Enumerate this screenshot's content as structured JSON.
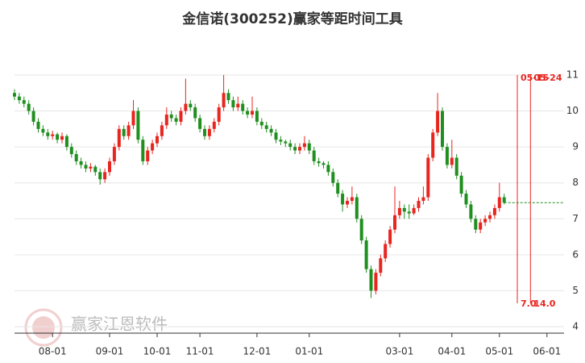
{
  "chart_data": {
    "type": "candlestick",
    "title": "金信诺(300252)赢家等距时间工具",
    "watermark": "赢家江恩软件",
    "up_color": "#e8251f",
    "down_color": "#1f8f1f",
    "marker_color": "#e8251f",
    "ylim": [
      3.82,
      11.74
    ],
    "yticks": [
      4,
      5,
      6,
      7,
      8,
      9,
      10,
      11
    ],
    "grid": true,
    "categories": [
      null,
      null,
      null,
      null,
      null,
      null,
      null,
      null,
      "08-01",
      null,
      null,
      null,
      null,
      null,
      null,
      null,
      null,
      null,
      null,
      null,
      "09-01",
      null,
      null,
      null,
      null,
      null,
      null,
      null,
      null,
      null,
      "10-01",
      null,
      null,
      null,
      null,
      null,
      null,
      null,
      null,
      "11-01",
      null,
      null,
      null,
      null,
      null,
      null,
      null,
      null,
      null,
      null,
      null,
      "12-01",
      null,
      null,
      null,
      null,
      null,
      null,
      null,
      null,
      null,
      null,
      "01-01",
      null,
      null,
      null,
      null,
      null,
      null,
      null,
      null,
      null,
      null,
      null,
      null,
      null,
      null,
      null,
      null,
      null,
      null,
      "03-01",
      null,
      null,
      null,
      null,
      null,
      null,
      null,
      null,
      null,
      null,
      "04-01",
      null,
      null,
      null,
      null,
      null,
      null,
      null,
      null,
      null,
      "05-01",
      null,
      null,
      null,
      null,
      null,
      null,
      null,
      null,
      null,
      "06-01",
      null,
      null
    ],
    "candles": [
      [
        10.5,
        10.6,
        10.3,
        10.4
      ],
      [
        10.4,
        10.5,
        10.2,
        10.3
      ],
      [
        10.3,
        10.4,
        10.1,
        10.2
      ],
      [
        10.2,
        10.3,
        9.9,
        10.0
      ],
      [
        10.0,
        10.1,
        9.6,
        9.7
      ],
      [
        9.7,
        9.8,
        9.4,
        9.5
      ],
      [
        9.5,
        9.6,
        9.3,
        9.4
      ],
      [
        9.4,
        9.5,
        9.2,
        9.3
      ],
      [
        9.3,
        9.45,
        9.2,
        9.35
      ],
      [
        9.35,
        9.4,
        9.1,
        9.2
      ],
      [
        9.2,
        9.4,
        9.1,
        9.3
      ],
      [
        9.3,
        9.35,
        8.9,
        9.0
      ],
      [
        9.0,
        9.1,
        8.7,
        8.8
      ],
      [
        8.8,
        8.9,
        8.5,
        8.6
      ],
      [
        8.6,
        8.7,
        8.4,
        8.5
      ],
      [
        8.5,
        8.6,
        8.3,
        8.4
      ],
      [
        8.4,
        8.55,
        8.3,
        8.45
      ],
      [
        8.45,
        8.5,
        8.2,
        8.3
      ],
      [
        8.3,
        8.4,
        7.95,
        8.1
      ],
      [
        8.1,
        8.4,
        8.0,
        8.3
      ],
      [
        8.3,
        8.7,
        8.2,
        8.6
      ],
      [
        8.6,
        9.1,
        8.5,
        9.0
      ],
      [
        9.0,
        9.6,
        8.9,
        9.5
      ],
      [
        9.5,
        9.6,
        9.2,
        9.3
      ],
      [
        9.3,
        9.7,
        9.2,
        9.6
      ],
      [
        9.6,
        10.3,
        9.5,
        10.0
      ],
      [
        10.0,
        10.1,
        9.1,
        9.2
      ],
      [
        9.2,
        9.3,
        8.5,
        8.6
      ],
      [
        8.6,
        9.0,
        8.5,
        8.9
      ],
      [
        8.9,
        9.2,
        8.8,
        9.1
      ],
      [
        9.1,
        9.4,
        9.0,
        9.3
      ],
      [
        9.3,
        9.7,
        9.2,
        9.6
      ],
      [
        9.6,
        10.1,
        9.5,
        9.9
      ],
      [
        9.9,
        10.0,
        9.7,
        9.8
      ],
      [
        9.8,
        9.9,
        9.6,
        9.7
      ],
      [
        9.7,
        10.1,
        9.6,
        10.0
      ],
      [
        10.0,
        10.9,
        9.9,
        10.2
      ],
      [
        10.2,
        10.3,
        10.0,
        10.1
      ],
      [
        10.1,
        10.2,
        9.7,
        9.8
      ],
      [
        9.8,
        9.9,
        9.4,
        9.5
      ],
      [
        9.5,
        9.6,
        9.2,
        9.3
      ],
      [
        9.3,
        9.6,
        9.2,
        9.5
      ],
      [
        9.5,
        9.8,
        9.4,
        9.7
      ],
      [
        9.7,
        10.2,
        9.6,
        10.1
      ],
      [
        10.1,
        11.0,
        10.0,
        10.5
      ],
      [
        10.5,
        10.6,
        10.2,
        10.3
      ],
      [
        10.3,
        10.4,
        10.0,
        10.1
      ],
      [
        10.1,
        10.4,
        10.0,
        10.2
      ],
      [
        10.2,
        10.3,
        9.9,
        10.0
      ],
      [
        10.0,
        10.1,
        9.8,
        9.9
      ],
      [
        9.9,
        10.4,
        9.8,
        10.0
      ],
      [
        10.0,
        10.1,
        9.6,
        9.7
      ],
      [
        9.7,
        9.8,
        9.5,
        9.6
      ],
      [
        9.6,
        9.7,
        9.4,
        9.5
      ],
      [
        9.5,
        9.6,
        9.3,
        9.4
      ],
      [
        9.4,
        9.5,
        9.1,
        9.2
      ],
      [
        9.2,
        9.3,
        9.05,
        9.15
      ],
      [
        9.15,
        9.2,
        9.0,
        9.1
      ],
      [
        9.1,
        9.2,
        8.9,
        9.0
      ],
      [
        9.0,
        9.1,
        8.8,
        8.9
      ],
      [
        8.9,
        9.1,
        8.8,
        9.0
      ],
      [
        9.0,
        9.3,
        8.9,
        9.1
      ],
      [
        9.1,
        9.2,
        8.8,
        8.9
      ],
      [
        8.9,
        9.0,
        8.5,
        8.6
      ],
      [
        8.6,
        8.7,
        8.45,
        8.55
      ],
      [
        8.55,
        8.6,
        8.4,
        8.5
      ],
      [
        8.5,
        8.6,
        8.2,
        8.3
      ],
      [
        8.3,
        8.4,
        7.9,
        8.0
      ],
      [
        8.0,
        8.1,
        7.6,
        7.7
      ],
      [
        7.7,
        7.8,
        7.2,
        7.4
      ],
      [
        7.4,
        7.6,
        7.3,
        7.5
      ],
      [
        7.5,
        7.9,
        7.4,
        7.6
      ],
      [
        7.6,
        7.7,
        6.9,
        7.0
      ],
      [
        7.0,
        7.1,
        6.3,
        6.4
      ],
      [
        6.4,
        6.5,
        5.5,
        5.6
      ],
      [
        5.6,
        5.7,
        4.8,
        5.0
      ],
      [
        5.0,
        5.6,
        4.9,
        5.5
      ],
      [
        5.5,
        6.0,
        5.4,
        5.9
      ],
      [
        5.9,
        6.4,
        5.8,
        6.3
      ],
      [
        6.3,
        6.8,
        6.2,
        6.7
      ],
      [
        6.7,
        7.9,
        6.6,
        7.1
      ],
      [
        7.1,
        7.5,
        7.0,
        7.3
      ],
      [
        7.3,
        7.4,
        7.0,
        7.2
      ],
      [
        7.2,
        7.4,
        7.0,
        7.15
      ],
      [
        7.15,
        7.4,
        7.1,
        7.3
      ],
      [
        7.3,
        7.6,
        7.2,
        7.5
      ],
      [
        7.5,
        7.9,
        7.4,
        7.6
      ],
      [
        7.6,
        8.8,
        7.5,
        8.7
      ],
      [
        8.7,
        9.5,
        8.6,
        9.4
      ],
      [
        9.4,
        10.5,
        9.3,
        10.0
      ],
      [
        10.0,
        10.1,
        8.9,
        9.0
      ],
      [
        9.0,
        9.1,
        8.4,
        8.5
      ],
      [
        8.5,
        9.2,
        8.4,
        8.7
      ],
      [
        8.7,
        8.8,
        8.1,
        8.2
      ],
      [
        8.2,
        8.3,
        7.6,
        7.7
      ],
      [
        7.7,
        7.8,
        7.3,
        7.4
      ],
      [
        7.4,
        7.5,
        6.9,
        7.0
      ],
      [
        7.0,
        7.1,
        6.6,
        6.7
      ],
      [
        6.7,
        7.0,
        6.6,
        6.9
      ],
      [
        6.9,
        7.1,
        6.8,
        7.0
      ],
      [
        7.0,
        7.2,
        6.9,
        7.1
      ],
      [
        7.1,
        7.4,
        7.0,
        7.3
      ],
      [
        7.3,
        8.0,
        7.2,
        7.6
      ],
      [
        7.6,
        7.7,
        7.4,
        7.45
      ],
      null,
      null,
      null,
      null,
      null,
      null,
      null,
      null,
      null,
      null,
      null
    ],
    "time_markers": [
      {
        "date": "05-15",
        "days": {
          "value": 7,
          "label": "7.0"
        }
      },
      {
        "date": "05-24",
        "days": {
          "value": 14,
          "label": "14.0"
        }
      }
    ]
  }
}
